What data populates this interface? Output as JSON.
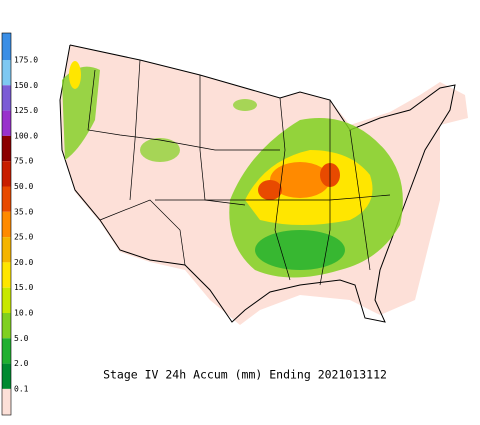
{
  "title": "Stage IV 24h Accum (mm) Ending 2021013112",
  "legend": {
    "labels": [
      "175.0",
      "150.0",
      "125.0",
      "100.0",
      "75.0",
      "50.0",
      "35.0",
      "25.0",
      "20.0",
      "15.0",
      "10.0",
      "5.0",
      "2.0",
      "0.1"
    ],
    "colors": [
      "#3a8ee6",
      "#7ec8f2",
      "#7b5cd6",
      "#9932cc",
      "#8b0000",
      "#c81e00",
      "#e84a00",
      "#ff8a00",
      "#f5b400",
      "#ffe600",
      "#c8e800",
      "#80d020",
      "#20b030",
      "#008a30",
      "#fde0d8"
    ]
  }
}
